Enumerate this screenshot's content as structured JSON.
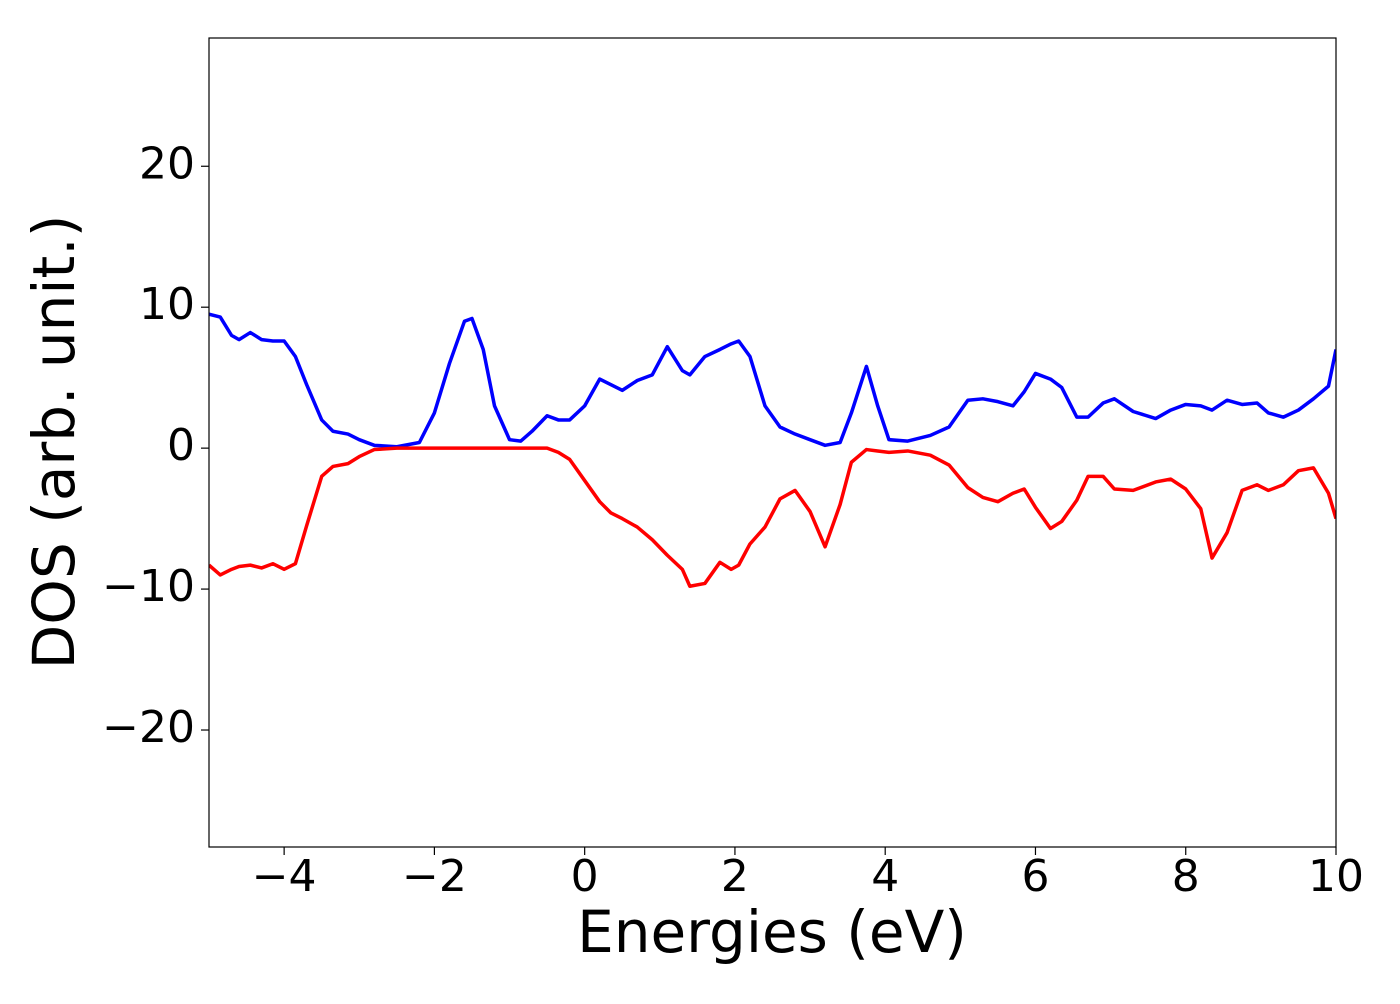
{
  "chart_data": {
    "type": "line",
    "x_label": "Energies (eV)",
    "y_label": "DOS (arb. unit.)",
    "x": [
      -5,
      -4.85,
      -4.7,
      -4.6,
      -4.45,
      -4.3,
      -4.15,
      -4,
      -3.85,
      -3.7,
      -3.5,
      -3.35,
      -3.15,
      -3,
      -2.8,
      -2.5,
      -2.2,
      -2,
      -1.8,
      -1.6,
      -1.5,
      -1.35,
      -1.2,
      -1,
      -0.85,
      -0.7,
      -0.5,
      -0.35,
      -0.2,
      0,
      0.2,
      0.35,
      0.5,
      0.7,
      0.9,
      1.1,
      1.3,
      1.4,
      1.6,
      1.8,
      1.95,
      2.05,
      2.2,
      2.4,
      2.6,
      2.8,
      3,
      3.2,
      3.4,
      3.55,
      3.75,
      3.9,
      4.05,
      4.3,
      4.6,
      4.85,
      5.1,
      5.3,
      5.5,
      5.7,
      5.85,
      6,
      6.2,
      6.35,
      6.55,
      6.7,
      6.9,
      7.05,
      7.3,
      7.6,
      7.8,
      8,
      8.2,
      8.35,
      8.55,
      8.75,
      8.95,
      9.1,
      9.3,
      9.5,
      9.7,
      9.9,
      10
    ],
    "series": [
      {
        "color": "#0000ff",
        "values": [
          9.5,
          9.3,
          8.0,
          7.7,
          8.2,
          7.7,
          7.6,
          7.6,
          6.5,
          4.5,
          2.0,
          1.2,
          1.0,
          0.6,
          0.2,
          0.1,
          0.4,
          2.5,
          6.0,
          9.0,
          9.2,
          7.0,
          3.0,
          0.6,
          0.5,
          1.2,
          2.3,
          2.0,
          2.0,
          3.0,
          4.9,
          4.5,
          4.1,
          4.8,
          5.2,
          7.2,
          5.5,
          5.2,
          6.5,
          7.0,
          7.4,
          7.6,
          6.5,
          3.0,
          1.5,
          1.0,
          0.6,
          0.2,
          0.4,
          2.5,
          5.8,
          3.0,
          0.6,
          0.5,
          0.9,
          1.5,
          3.4,
          3.5,
          3.3,
          3.0,
          4.0,
          5.3,
          4.9,
          4.3,
          2.2,
          2.2,
          3.2,
          3.5,
          2.6,
          2.1,
          2.7,
          3.1,
          3.0,
          2.7,
          3.4,
          3.1,
          3.2,
          2.5,
          2.2,
          2.7,
          3.5,
          4.4,
          7.0
        ]
      },
      {
        "color": "#ff0000",
        "values": [
          -8.3,
          -9.0,
          -8.6,
          -8.4,
          -8.3,
          -8.5,
          -8.2,
          -8.6,
          -8.2,
          -5.5,
          -2.0,
          -1.3,
          -1.1,
          -0.6,
          -0.1,
          0,
          0,
          0,
          0,
          0,
          0,
          0,
          0,
          0,
          0,
          0,
          0,
          -0.3,
          -0.8,
          -2.3,
          -3.8,
          -4.6,
          -5.0,
          -5.6,
          -6.5,
          -7.6,
          -8.6,
          -9.8,
          -9.6,
          -8.1,
          -8.6,
          -8.3,
          -6.8,
          -5.6,
          -3.6,
          -3.0,
          -4.5,
          -7.0,
          -4.0,
          -1.0,
          -0.1,
          -0.2,
          -0.3,
          -0.2,
          -0.5,
          -1.2,
          -2.8,
          -3.5,
          -3.8,
          -3.2,
          -2.9,
          -4.2,
          -5.7,
          -5.2,
          -3.7,
          -2.0,
          -2.0,
          -2.9,
          -3.0,
          -2.4,
          -2.2,
          -2.9,
          -4.3,
          -7.8,
          -6.0,
          -3.0,
          -2.6,
          -3.0,
          -2.6,
          -1.6,
          -1.4,
          -3.2,
          -5.0
        ]
      }
    ],
    "xlim": [
      -5,
      10
    ],
    "xticks": [
      {
        "value": -4,
        "label": "−4"
      },
      {
        "value": -2,
        "label": "−2"
      },
      0,
      2,
      4,
      6,
      8,
      10
    ],
    "ylim": [
      -28.3,
      29.1
    ],
    "yticks": [
      {
        "value": -20,
        "label": "−20"
      },
      {
        "value": -10,
        "label": "−10"
      },
      0,
      10,
      20
    ],
    "line_width": 3.5
  }
}
